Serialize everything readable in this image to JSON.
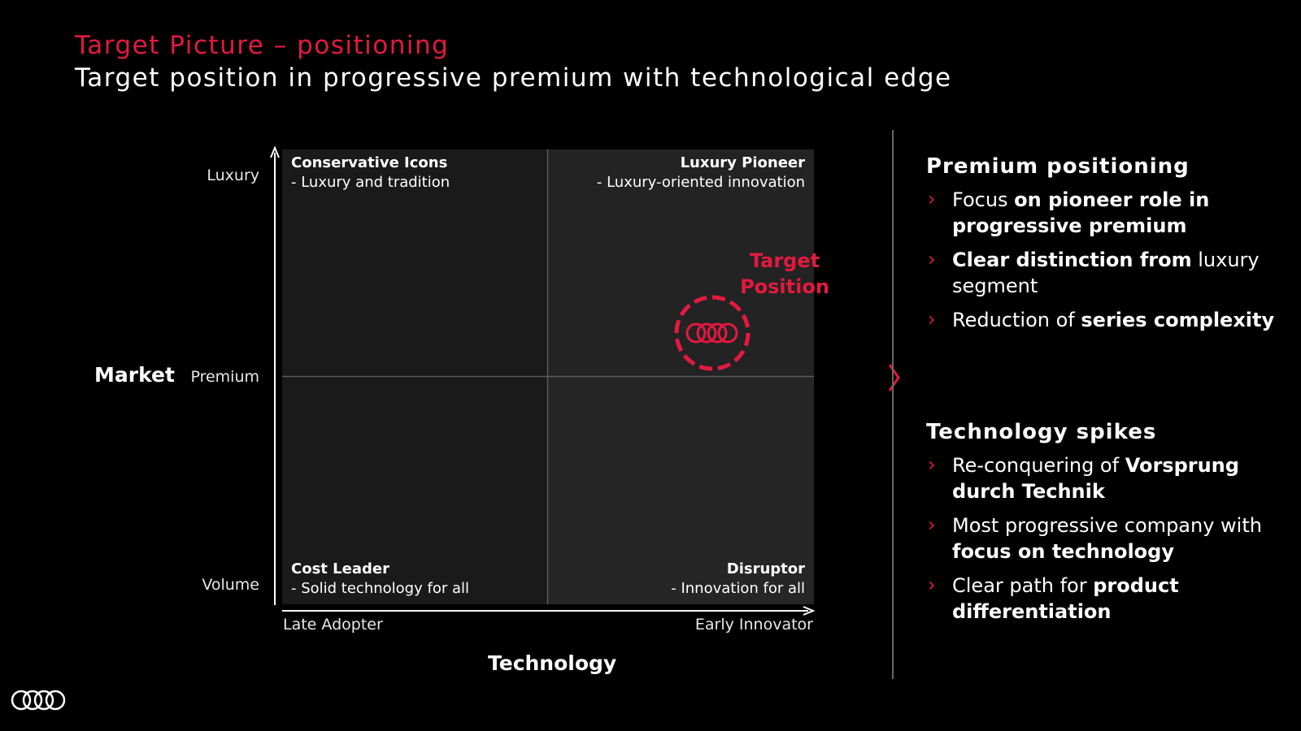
{
  "header": {
    "title": "Target Picture – positioning",
    "subtitle": "Target position in progressive premium with technological edge"
  },
  "matrix": {
    "quadrants": {
      "top_left": {
        "name": "Conservative Icons",
        "desc": "- Luxury and tradition"
      },
      "top_right": {
        "name": "Luxury Pioneer",
        "desc": "- Luxury-oriented innovation"
      },
      "bottom_left": {
        "name": "Cost Leader",
        "desc": "- Solid technology for all"
      },
      "bottom_right": {
        "name": "Disruptor",
        "desc": "- Innovation for all"
      }
    },
    "y_axis": {
      "title": "Market",
      "levels": [
        "Luxury",
        "Premium",
        "Volume"
      ]
    },
    "x_axis": {
      "title": "Technology",
      "left": "Late Adopter",
      "right": "Early Innovator"
    },
    "target_line1": "Target",
    "target_line2": "Position"
  },
  "sections": [
    {
      "title": "Premium positioning",
      "items": [
        {
          "parts": [
            {
              "text": "Focus ",
              "bold": false
            },
            {
              "text": "on pioneer role in progressive premium",
              "bold": true
            }
          ]
        },
        {
          "parts": [
            {
              "text": "Clear distinction from",
              "bold": true
            },
            {
              "text": " luxury segment",
              "bold": false
            }
          ]
        },
        {
          "parts": [
            {
              "text": "Reduction of ",
              "bold": false
            },
            {
              "text": "series complexity",
              "bold": true
            }
          ]
        }
      ]
    },
    {
      "title": "Technology spikes",
      "items": [
        {
          "parts": [
            {
              "text": "Re-conquering of ",
              "bold": false
            },
            {
              "text": "Vorsprung durch Technik",
              "bold": true
            }
          ]
        },
        {
          "parts": [
            {
              "text": "Most progressive company with ",
              "bold": false
            },
            {
              "text": "focus on technology",
              "bold": true
            }
          ]
        },
        {
          "parts": [
            {
              "text": "Clear path for ",
              "bold": false
            },
            {
              "text": "product differentiation",
              "bold": true
            }
          ]
        }
      ]
    }
  ],
  "colors": {
    "accent": "#e4193f",
    "background": "#000000"
  }
}
